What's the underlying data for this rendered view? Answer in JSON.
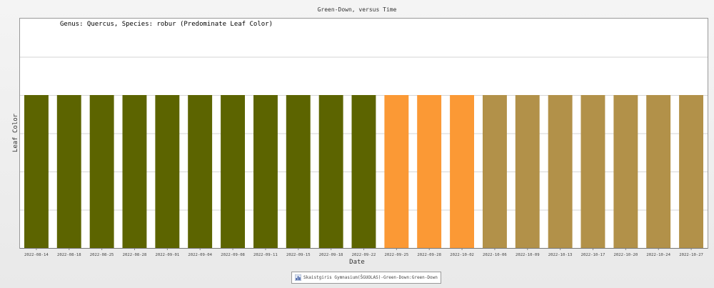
{
  "chart_data": {
    "type": "bar",
    "title": "Green-Down, versus Time",
    "subtitle": "Genus: Quercus, Species: robur (Predominate Leaf Color)",
    "xlabel": "Date",
    "ylabel": "Leaf Color",
    "categories": [
      "2022-08-14",
      "2022-08-18",
      "2022-08-25",
      "2022-08-28",
      "2022-09-01",
      "2022-09-04",
      "2022-09-08",
      "2022-09-11",
      "2022-09-15",
      "2022-09-18",
      "2022-09-22",
      "2022-09-25",
      "2022-09-28",
      "2022-10-02",
      "2022-10-06",
      "2022-10-09",
      "2022-10-13",
      "2022-10-17",
      "2022-10-20",
      "2022-10-24",
      "2022-10-27"
    ],
    "values": [
      1,
      1,
      1,
      1,
      1,
      1,
      1,
      1,
      1,
      1,
      1,
      1,
      1,
      1,
      1,
      1,
      1,
      1,
      1,
      1,
      1
    ],
    "bar_colors": [
      "#5c6400",
      "#5c6400",
      "#5c6400",
      "#5c6400",
      "#5c6400",
      "#5c6400",
      "#5c6400",
      "#5c6400",
      "#5c6400",
      "#5c6400",
      "#5c6400",
      "#fb9935",
      "#fb9935",
      "#fb9935",
      "#b29149",
      "#b29149",
      "#b29149",
      "#b29149",
      "#b29149",
      "#b29149",
      "#b29149"
    ],
    "ylim": [
      0,
      1.5
    ],
    "grid": true,
    "legend_position": "bottom-center",
    "series": [
      {
        "name": "Skaistgiris Gymnasium(ŠGUOLAS)-Green-Down:Green-Down",
        "values": [
          1,
          1,
          1,
          1,
          1,
          1,
          1,
          1,
          1,
          1,
          1,
          1,
          1,
          1,
          1,
          1,
          1,
          1,
          1,
          1,
          1
        ]
      }
    ]
  },
  "legend": {
    "label": "Skaistgiris Gymnasium(ŠGUOLAS)-Green-Down:Green-Down",
    "icon": "bar-chart-icon"
  }
}
